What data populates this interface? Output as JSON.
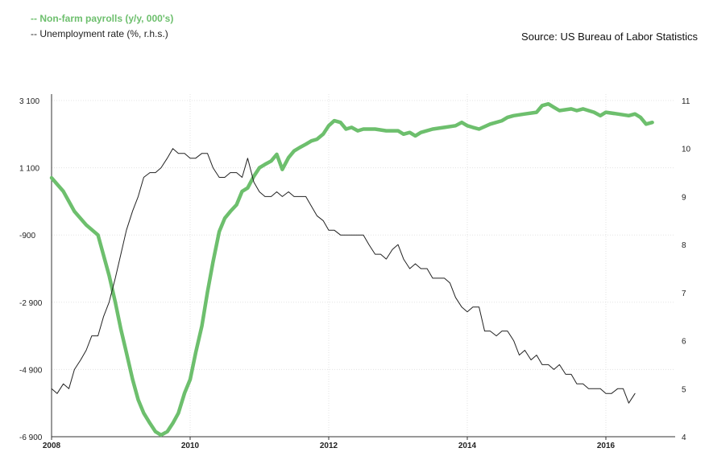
{
  "legend": {
    "payrolls": "-- Non-farm payrolls (y/y, 000's)",
    "unemployment": "-- Unemployment rate (%, r.h.s.)"
  },
  "source": "Source: US Bureau of Labor Statistics",
  "chart_data": {
    "type": "line",
    "x_axis": {
      "min": 2008,
      "max": 2017,
      "ticks": [
        2008,
        2010,
        2012,
        2014,
        2016
      ]
    },
    "y_left": {
      "min": -6900,
      "max": 3100,
      "ticks": [
        3100,
        1100,
        -900,
        -2900,
        -4900,
        -6900
      ],
      "tick_labels": [
        "3 100",
        "1 100",
        "-900",
        "-2 900",
        "-4 900",
        "-6 900"
      ]
    },
    "y_right": {
      "min": 4,
      "max": 11,
      "ticks": [
        11,
        10,
        9,
        8,
        7,
        6,
        5,
        4
      ]
    },
    "grid": true,
    "series": [
      {
        "name": "Non-farm payrolls (y/y, 000's)",
        "axis": "left",
        "color": "#6dbf6d",
        "points": [
          [
            2008.0,
            800
          ],
          [
            2008.17,
            400
          ],
          [
            2008.33,
            -200
          ],
          [
            2008.5,
            -600
          ],
          [
            2008.67,
            -900
          ],
          [
            2008.75,
            -1500
          ],
          [
            2008.83,
            -2100
          ],
          [
            2008.92,
            -2900
          ],
          [
            2009.0,
            -3700
          ],
          [
            2009.08,
            -4400
          ],
          [
            2009.17,
            -5200
          ],
          [
            2009.25,
            -5800
          ],
          [
            2009.33,
            -6200
          ],
          [
            2009.42,
            -6500
          ],
          [
            2009.5,
            -6750
          ],
          [
            2009.58,
            -6850
          ],
          [
            2009.67,
            -6750
          ],
          [
            2009.75,
            -6500
          ],
          [
            2009.83,
            -6200
          ],
          [
            2009.92,
            -5600
          ],
          [
            2010.0,
            -5200
          ],
          [
            2010.08,
            -4400
          ],
          [
            2010.17,
            -3600
          ],
          [
            2010.25,
            -2600
          ],
          [
            2010.33,
            -1700
          ],
          [
            2010.42,
            -800
          ],
          [
            2010.5,
            -400
          ],
          [
            2010.58,
            -200
          ],
          [
            2010.67,
            0
          ],
          [
            2010.75,
            400
          ],
          [
            2010.83,
            500
          ],
          [
            2010.92,
            850
          ],
          [
            2011.0,
            1100
          ],
          [
            2011.08,
            1200
          ],
          [
            2011.17,
            1300
          ],
          [
            2011.25,
            1500
          ],
          [
            2011.33,
            1050
          ],
          [
            2011.42,
            1400
          ],
          [
            2011.5,
            1600
          ],
          [
            2011.58,
            1700
          ],
          [
            2011.67,
            1800
          ],
          [
            2011.75,
            1900
          ],
          [
            2011.83,
            1950
          ],
          [
            2011.92,
            2100
          ],
          [
            2012.0,
            2350
          ],
          [
            2012.08,
            2500
          ],
          [
            2012.17,
            2450
          ],
          [
            2012.25,
            2250
          ],
          [
            2012.33,
            2300
          ],
          [
            2012.42,
            2200
          ],
          [
            2012.5,
            2250
          ],
          [
            2012.67,
            2250
          ],
          [
            2012.83,
            2200
          ],
          [
            2013.0,
            2200
          ],
          [
            2013.08,
            2100
          ],
          [
            2013.17,
            2150
          ],
          [
            2013.25,
            2050
          ],
          [
            2013.33,
            2150
          ],
          [
            2013.5,
            2250
          ],
          [
            2013.67,
            2300
          ],
          [
            2013.83,
            2350
          ],
          [
            2013.92,
            2450
          ],
          [
            2014.0,
            2350
          ],
          [
            2014.08,
            2300
          ],
          [
            2014.17,
            2250
          ],
          [
            2014.33,
            2400
          ],
          [
            2014.5,
            2500
          ],
          [
            2014.58,
            2600
          ],
          [
            2014.67,
            2650
          ],
          [
            2014.83,
            2700
          ],
          [
            2015.0,
            2750
          ],
          [
            2015.08,
            2950
          ],
          [
            2015.17,
            3000
          ],
          [
            2015.25,
            2900
          ],
          [
            2015.33,
            2800
          ],
          [
            2015.5,
            2850
          ],
          [
            2015.58,
            2800
          ],
          [
            2015.67,
            2850
          ],
          [
            2015.83,
            2750
          ],
          [
            2015.92,
            2650
          ],
          [
            2016.0,
            2750
          ],
          [
            2016.17,
            2700
          ],
          [
            2016.33,
            2650
          ],
          [
            2016.42,
            2700
          ],
          [
            2016.5,
            2600
          ],
          [
            2016.58,
            2400
          ],
          [
            2016.67,
            2450
          ]
        ]
      },
      {
        "name": "Unemployment rate (%, r.h.s.)",
        "axis": "right",
        "color": "#222222",
        "points": [
          [
            2008.0,
            5.0
          ],
          [
            2008.08,
            4.9
          ],
          [
            2008.17,
            5.1
          ],
          [
            2008.25,
            5.0
          ],
          [
            2008.33,
            5.4
          ],
          [
            2008.42,
            5.6
          ],
          [
            2008.5,
            5.8
          ],
          [
            2008.58,
            6.1
          ],
          [
            2008.67,
            6.1
          ],
          [
            2008.75,
            6.5
          ],
          [
            2008.83,
            6.8
          ],
          [
            2008.92,
            7.3
          ],
          [
            2009.0,
            7.8
          ],
          [
            2009.08,
            8.3
          ],
          [
            2009.17,
            8.7
          ],
          [
            2009.25,
            9.0
          ],
          [
            2009.33,
            9.4
          ],
          [
            2009.42,
            9.5
          ],
          [
            2009.5,
            9.5
          ],
          [
            2009.58,
            9.6
          ],
          [
            2009.67,
            9.8
          ],
          [
            2009.75,
            10.0
          ],
          [
            2009.83,
            9.9
          ],
          [
            2009.92,
            9.9
          ],
          [
            2010.0,
            9.8
          ],
          [
            2010.08,
            9.8
          ],
          [
            2010.17,
            9.9
          ],
          [
            2010.25,
            9.9
          ],
          [
            2010.33,
            9.6
          ],
          [
            2010.42,
            9.4
          ],
          [
            2010.5,
            9.4
          ],
          [
            2010.58,
            9.5
          ],
          [
            2010.67,
            9.5
          ],
          [
            2010.75,
            9.4
          ],
          [
            2010.83,
            9.8
          ],
          [
            2010.92,
            9.3
          ],
          [
            2011.0,
            9.1
          ],
          [
            2011.08,
            9.0
          ],
          [
            2011.17,
            9.0
          ],
          [
            2011.25,
            9.1
          ],
          [
            2011.33,
            9.0
          ],
          [
            2011.42,
            9.1
          ],
          [
            2011.5,
            9.0
          ],
          [
            2011.58,
            9.0
          ],
          [
            2011.67,
            9.0
          ],
          [
            2011.75,
            8.8
          ],
          [
            2011.83,
            8.6
          ],
          [
            2011.92,
            8.5
          ],
          [
            2012.0,
            8.3
          ],
          [
            2012.08,
            8.3
          ],
          [
            2012.17,
            8.2
          ],
          [
            2012.25,
            8.2
          ],
          [
            2012.33,
            8.2
          ],
          [
            2012.42,
            8.2
          ],
          [
            2012.5,
            8.2
          ],
          [
            2012.58,
            8.0
          ],
          [
            2012.67,
            7.8
          ],
          [
            2012.75,
            7.8
          ],
          [
            2012.83,
            7.7
          ],
          [
            2012.92,
            7.9
          ],
          [
            2013.0,
            8.0
          ],
          [
            2013.08,
            7.7
          ],
          [
            2013.17,
            7.5
          ],
          [
            2013.25,
            7.6
          ],
          [
            2013.33,
            7.5
          ],
          [
            2013.42,
            7.5
          ],
          [
            2013.5,
            7.3
          ],
          [
            2013.58,
            7.3
          ],
          [
            2013.67,
            7.3
          ],
          [
            2013.75,
            7.2
          ],
          [
            2013.83,
            6.9
          ],
          [
            2013.92,
            6.7
          ],
          [
            2014.0,
            6.6
          ],
          [
            2014.08,
            6.7
          ],
          [
            2014.17,
            6.7
          ],
          [
            2014.25,
            6.2
          ],
          [
            2014.33,
            6.2
          ],
          [
            2014.42,
            6.1
          ],
          [
            2014.5,
            6.2
          ],
          [
            2014.58,
            6.2
          ],
          [
            2014.67,
            6.0
          ],
          [
            2014.75,
            5.7
          ],
          [
            2014.83,
            5.8
          ],
          [
            2014.92,
            5.6
          ],
          [
            2015.0,
            5.7
          ],
          [
            2015.08,
            5.5
          ],
          [
            2015.17,
            5.5
          ],
          [
            2015.25,
            5.4
          ],
          [
            2015.33,
            5.5
          ],
          [
            2015.42,
            5.3
          ],
          [
            2015.5,
            5.3
          ],
          [
            2015.58,
            5.1
          ],
          [
            2015.67,
            5.1
          ],
          [
            2015.75,
            5.0
          ],
          [
            2015.83,
            5.0
          ],
          [
            2015.92,
            5.0
          ],
          [
            2016.0,
            4.9
          ],
          [
            2016.08,
            4.9
          ],
          [
            2016.17,
            5.0
          ],
          [
            2016.25,
            5.0
          ],
          [
            2016.33,
            4.7
          ],
          [
            2016.42,
            4.9
          ]
        ]
      }
    ]
  }
}
